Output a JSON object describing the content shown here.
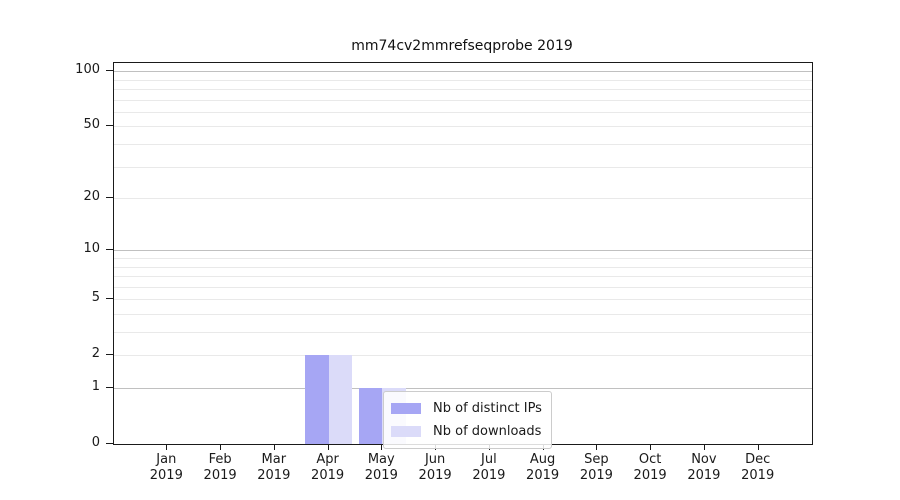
{
  "chart_data": {
    "type": "bar",
    "title": "mm74cv2mmrefseqprobe 2019",
    "categories": [
      "Jan",
      "Feb",
      "Mar",
      "Apr",
      "May",
      "Jun",
      "Jul",
      "Aug",
      "Sep",
      "Oct",
      "Nov",
      "Dec"
    ],
    "year": "2019",
    "series": [
      {
        "name": "Nb of distinct IPs",
        "color": "#a6a6f4",
        "values": [
          0,
          0,
          0,
          2,
          1,
          0,
          0,
          0,
          0,
          0,
          0,
          0
        ]
      },
      {
        "name": "Nb of downloads",
        "color": "#dbdbf9",
        "values": [
          0,
          0,
          0,
          2,
          1,
          0,
          0,
          0,
          0,
          0,
          0,
          0
        ]
      }
    ],
    "y_axis": {
      "scale": "log1p",
      "tick_values": [
        0,
        1,
        2,
        5,
        10,
        20,
        50,
        100
      ],
      "decade_gridlines": [
        1,
        10,
        100
      ],
      "light_gridlines": [
        2,
        5,
        20,
        50,
        3,
        4,
        6,
        7,
        8,
        9,
        30,
        40,
        60,
        70,
        80,
        90
      ],
      "ylim": [
        0,
        110
      ]
    },
    "x_axis": {
      "label_format": "month over year"
    },
    "legend": {
      "position": "lower-center",
      "framed": true
    },
    "grid": "horizontal only"
  },
  "colors": {
    "background": "#ffffff",
    "axis_frame": "#1a1a1a",
    "grid_decade": "#c0c0c0",
    "grid_minor": "#e9e9e9",
    "text": "#1a1a1a",
    "series_distinct_ips": "#a6a6f4",
    "series_downloads": "#dbdbf9"
  }
}
